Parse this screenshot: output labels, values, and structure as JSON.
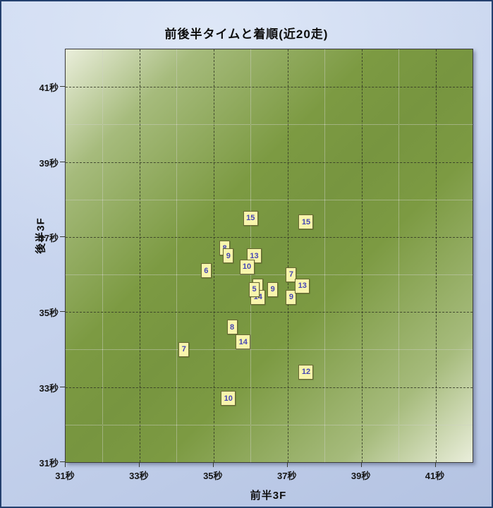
{
  "title": "前後半タイムと着順(近20走)",
  "chart_data": {
    "type": "scatter",
    "title": "前後半タイムと着順(近20走)",
    "xlabel": "前半3F",
    "ylabel": "後半3F",
    "xlim": [
      31,
      42
    ],
    "ylim": [
      31,
      42
    ],
    "tick_unit": "秒",
    "x_major_ticks": [
      31,
      33,
      35,
      37,
      39,
      41
    ],
    "y_major_ticks": [
      31,
      33,
      35,
      37,
      39,
      41
    ],
    "minor_grid_step": 1,
    "grid": true,
    "marker_label_meaning": "着順",
    "points": [
      {
        "label": "15",
        "x": 36.0,
        "y": 37.5
      },
      {
        "label": "15",
        "x": 37.5,
        "y": 37.4
      },
      {
        "label": "8",
        "x": 35.3,
        "y": 36.7
      },
      {
        "label": "9",
        "x": 35.4,
        "y": 36.5
      },
      {
        "label": "13",
        "x": 36.1,
        "y": 36.5
      },
      {
        "label": "10",
        "x": 35.9,
        "y": 36.2
      },
      {
        "label": "6",
        "x": 34.8,
        "y": 36.1
      },
      {
        "label": "7",
        "x": 37.1,
        "y": 36.0
      },
      {
        "label": "9",
        "x": 37.1,
        "y": 35.4
      },
      {
        "label": "13",
        "x": 37.4,
        "y": 35.7
      },
      {
        "label": "",
        "x": 36.2,
        "y": 35.7,
        "label_covered": true
      },
      {
        "label": "14",
        "x": 36.2,
        "y": 35.4
      },
      {
        "label": "5",
        "x": 36.1,
        "y": 35.6
      },
      {
        "label": "9",
        "x": 36.6,
        "y": 35.6
      },
      {
        "label": "8",
        "x": 35.5,
        "y": 34.6
      },
      {
        "label": "14",
        "x": 35.8,
        "y": 34.2
      },
      {
        "label": "7",
        "x": 34.2,
        "y": 34.0
      },
      {
        "label": "12",
        "x": 37.5,
        "y": 33.4
      },
      {
        "label": "10",
        "x": 35.4,
        "y": 32.7
      }
    ]
  },
  "colors": {
    "outer_background": "#c6d3ed",
    "outer_border": "#24406e",
    "plot_green": "#7c9a42",
    "plot_light_corner": "#eaeedb",
    "grid_major": "#343826",
    "grid_minor": "#cdd0c4",
    "marker_fill": "#f8f5ac",
    "marker_border": "#696935",
    "marker_text": "#4646b4",
    "text": "#0d0d0d"
  }
}
